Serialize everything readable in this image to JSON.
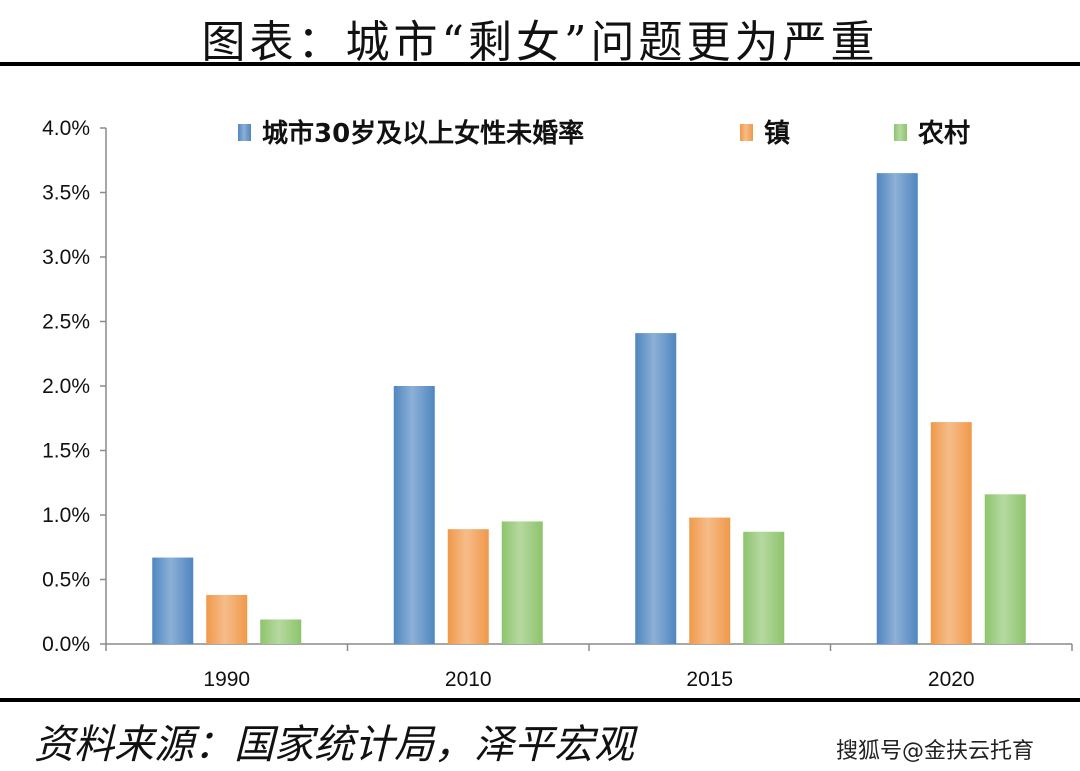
{
  "header": {
    "title": "图表：城市“剩女”问题更为严重"
  },
  "footer": {
    "source": "资料来源：国家统计局，泽平宏观",
    "watermark": "搜狐号@金扶云托育"
  },
  "colors": {
    "blue": "#4f86c0",
    "orange": "#f0994a",
    "green": "#8ec46d"
  },
  "chart_data": {
    "type": "bar",
    "title": "",
    "xlabel": "",
    "ylabel": "",
    "categories": [
      "1990",
      "2010",
      "2015",
      "2020"
    ],
    "ylim": [
      0,
      4.0
    ],
    "yticks": [
      0,
      0.5,
      1.0,
      1.5,
      2.0,
      2.5,
      3.0,
      3.5,
      4.0
    ],
    "ytick_labels": [
      "0.0%",
      "0.5%",
      "1.0%",
      "1.5%",
      "2.0%",
      "2.5%",
      "3.0%",
      "3.5%",
      "4.0%"
    ],
    "unit": "%",
    "grid": false,
    "legend_position": "top",
    "series": [
      {
        "name": "城市30岁及以上女性未婚率",
        "color": "#4f86c0",
        "values": [
          0.67,
          2.0,
          2.41,
          3.65
        ]
      },
      {
        "name": "镇",
        "color": "#f0994a",
        "values": [
          0.38,
          0.89,
          0.98,
          1.72
        ]
      },
      {
        "name": "农村",
        "color": "#8ec46d",
        "values": [
          0.19,
          0.95,
          0.87,
          1.16
        ]
      }
    ]
  }
}
